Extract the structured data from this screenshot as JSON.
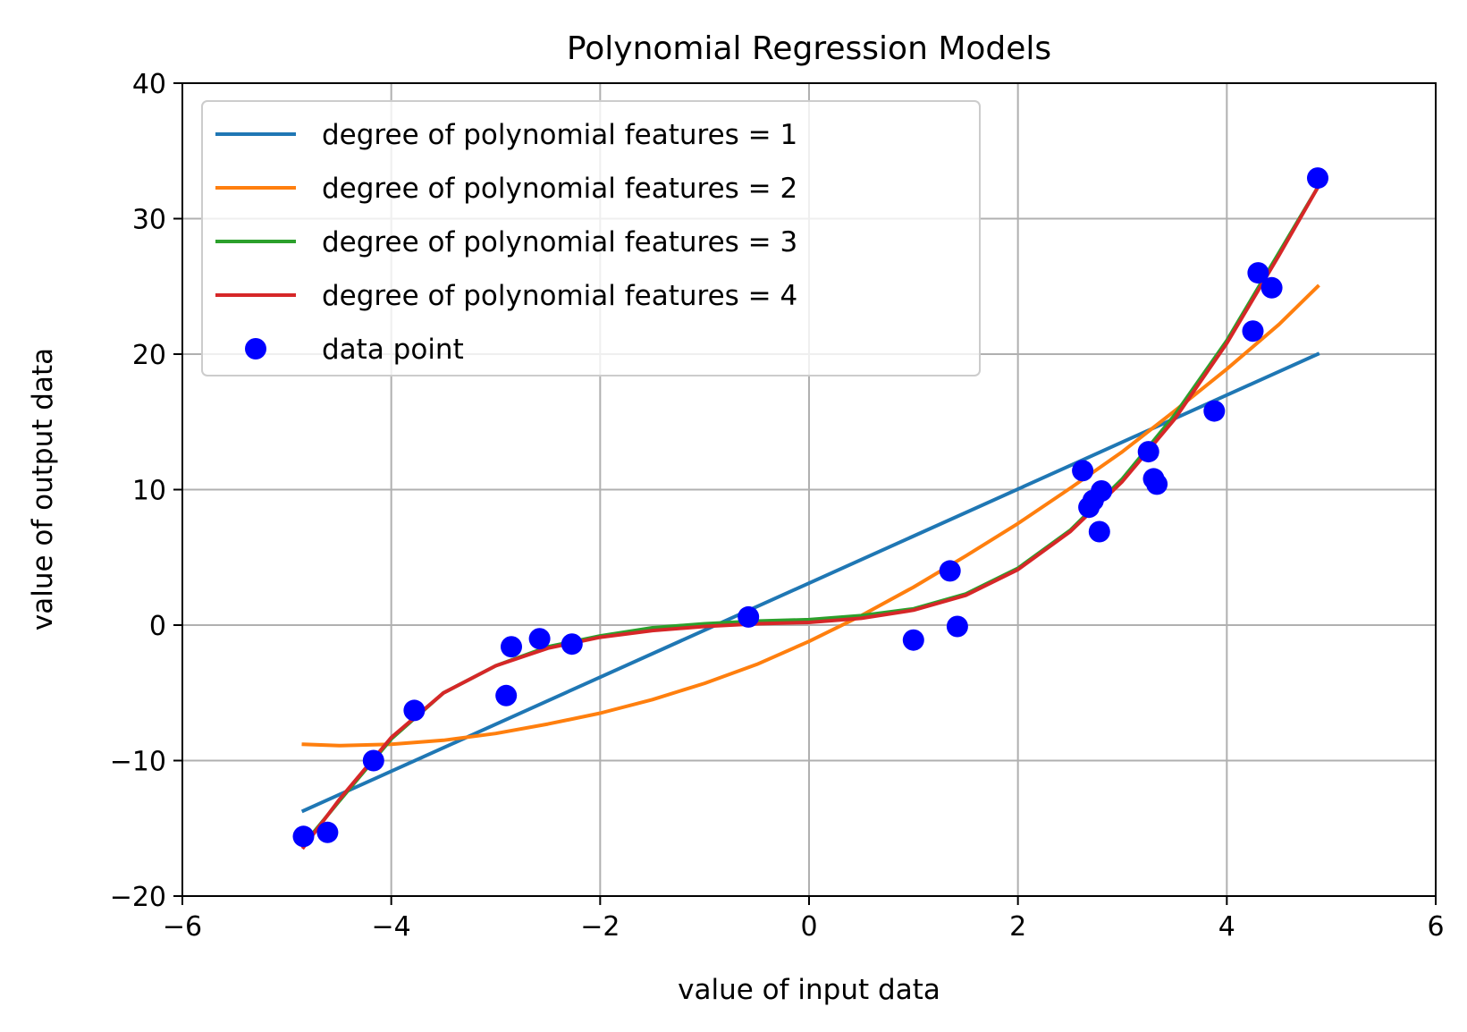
{
  "chart_data": {
    "type": "line",
    "title": "Polynomial Regression Models",
    "xlabel": "value of input data",
    "ylabel": "value of output data",
    "xlim": [
      -6,
      6
    ],
    "ylim": [
      -20,
      40
    ],
    "xticks": [
      -6,
      -4,
      -2,
      0,
      2,
      4,
      6
    ],
    "yticks": [
      -20,
      -10,
      0,
      10,
      20,
      30,
      40
    ],
    "xtick_labels": [
      "−6",
      "−4",
      "−2",
      "0",
      "2",
      "4",
      "6"
    ],
    "ytick_labels": [
      "−20",
      "−10",
      "0",
      "10",
      "20",
      "30",
      "40"
    ],
    "grid": true,
    "legend_position": "top-left",
    "series": [
      {
        "name": "degree of polynomial features = 1",
        "color": "#1f77b4",
        "x": [
          -4.84,
          4.87
        ],
        "y": [
          -13.7,
          20.0
        ]
      },
      {
        "name": "degree of polynomial features = 2",
        "color": "#ff7f0e",
        "x": [
          -4.84,
          -4.5,
          -4.0,
          -3.5,
          -3.0,
          -2.5,
          -2.0,
          -1.5,
          -1.0,
          -0.5,
          0.0,
          0.5,
          1.0,
          1.5,
          2.0,
          2.5,
          3.0,
          3.5,
          4.0,
          4.5,
          4.87
        ],
        "y": [
          -8.8,
          -8.9,
          -8.8,
          -8.5,
          -8.0,
          -7.3,
          -6.5,
          -5.5,
          -4.3,
          -2.9,
          -1.2,
          0.7,
          2.8,
          5.1,
          7.5,
          10.1,
          12.8,
          15.8,
          18.9,
          22.2,
          25.0
        ]
      },
      {
        "name": "degree of polynomial features = 3",
        "color": "#2ca02c",
        "x": [
          -4.84,
          -4.5,
          -4.0,
          -3.5,
          -3.0,
          -2.5,
          -2.0,
          -1.5,
          -1.0,
          -0.5,
          0.0,
          0.5,
          1.0,
          1.5,
          2.0,
          2.5,
          3.0,
          3.5,
          4.0,
          4.5,
          4.87
        ],
        "y": [
          -16.2,
          -13.0,
          -8.4,
          -5.0,
          -3.0,
          -1.6,
          -0.8,
          -0.2,
          0.1,
          0.3,
          0.4,
          0.7,
          1.2,
          2.3,
          4.2,
          7.0,
          10.8,
          15.5,
          21.0,
          27.5,
          32.3
        ]
      },
      {
        "name": "degree of polynomial features = 4",
        "color": "#d62728",
        "x": [
          -4.84,
          -4.5,
          -4.0,
          -3.5,
          -3.0,
          -2.5,
          -2.0,
          -1.5,
          -1.0,
          -0.5,
          0.0,
          0.5,
          1.0,
          1.5,
          2.0,
          2.5,
          3.0,
          3.5,
          4.0,
          4.5,
          4.87
        ],
        "y": [
          -16.4,
          -12.9,
          -8.3,
          -5.0,
          -3.0,
          -1.7,
          -0.9,
          -0.4,
          -0.1,
          0.1,
          0.2,
          0.5,
          1.1,
          2.2,
          4.1,
          6.9,
          10.6,
          15.2,
          20.8,
          27.3,
          32.3
        ]
      }
    ],
    "scatter": {
      "name": "data point",
      "color": "#0000ff",
      "x": [
        -4.84,
        -4.61,
        -4.17,
        -3.78,
        -2.9,
        -2.85,
        -2.58,
        -2.27,
        -0.58,
        1.0,
        1.35,
        1.42,
        2.62,
        2.68,
        2.72,
        2.78,
        2.8,
        3.25,
        3.3,
        3.33,
        3.88,
        4.25,
        4.3,
        4.43,
        4.87
      ],
      "y": [
        -15.6,
        -15.3,
        -10.0,
        -6.3,
        -5.2,
        -1.6,
        -1.0,
        -1.4,
        0.6,
        -1.1,
        4.0,
        -0.1,
        11.4,
        8.7,
        9.2,
        6.9,
        9.9,
        12.8,
        10.8,
        10.4,
        15.8,
        21.7,
        26.0,
        24.9,
        33.0
      ]
    }
  }
}
